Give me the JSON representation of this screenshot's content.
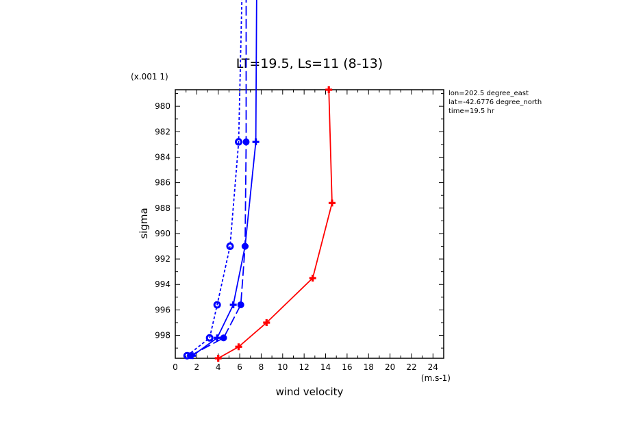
{
  "chart_data": {
    "type": "line",
    "title": "LT=19.5, Ls=11 (8-13)",
    "xlabel": "wind velocity",
    "ylabel": "sigma",
    "x_unit": "(m.s-1)",
    "y_unit": "(x.001 1)",
    "xlim": [
      0,
      25
    ],
    "ylim": [
      999.8,
      978.7
    ],
    "x_ticks": [
      0,
      2,
      4,
      6,
      8,
      10,
      12,
      14,
      16,
      18,
      20,
      22,
      24
    ],
    "y_ticks": [
      980,
      982,
      984,
      986,
      988,
      990,
      992,
      994,
      996,
      998
    ],
    "grid": false,
    "annotations": [
      "lon=202.5 degree_east",
      "lat=-42.6776 degree_north",
      "time=19.5 hr"
    ],
    "series": [
      {
        "color": "#ff0000",
        "style": "solid",
        "marker": "plus",
        "points": [
          [
            4.0,
            999.8
          ],
          [
            5.9,
            998.9
          ],
          [
            8.5,
            997.0
          ],
          [
            12.8,
            993.5
          ],
          [
            14.6,
            987.6
          ],
          [
            14.3,
            978.7
          ]
        ]
      },
      {
        "color": "#0000ff",
        "style": "solid",
        "marker": "plus",
        "points": [
          [
            1.6,
            999.6
          ],
          [
            3.9,
            998.2
          ],
          [
            5.4,
            995.6
          ],
          [
            6.5,
            991.0
          ],
          [
            7.5,
            982.8
          ],
          [
            7.6,
            968.0
          ]
        ]
      },
      {
        "color": "#0000ff",
        "style": "dashed",
        "marker": "dot",
        "points": [
          [
            1.4,
            999.6
          ],
          [
            4.5,
            998.2
          ],
          [
            6.1,
            995.6
          ],
          [
            6.5,
            991.0
          ],
          [
            6.6,
            982.8
          ],
          [
            6.6,
            968.0
          ]
        ]
      },
      {
        "color": "#0000ff",
        "style": "dotted",
        "marker": "circle",
        "points": [
          [
            1.1,
            999.6
          ],
          [
            3.2,
            998.2
          ],
          [
            3.9,
            995.6
          ],
          [
            5.1,
            991.0
          ],
          [
            5.9,
            982.8
          ],
          [
            6.3,
            968.0
          ]
        ]
      }
    ]
  }
}
